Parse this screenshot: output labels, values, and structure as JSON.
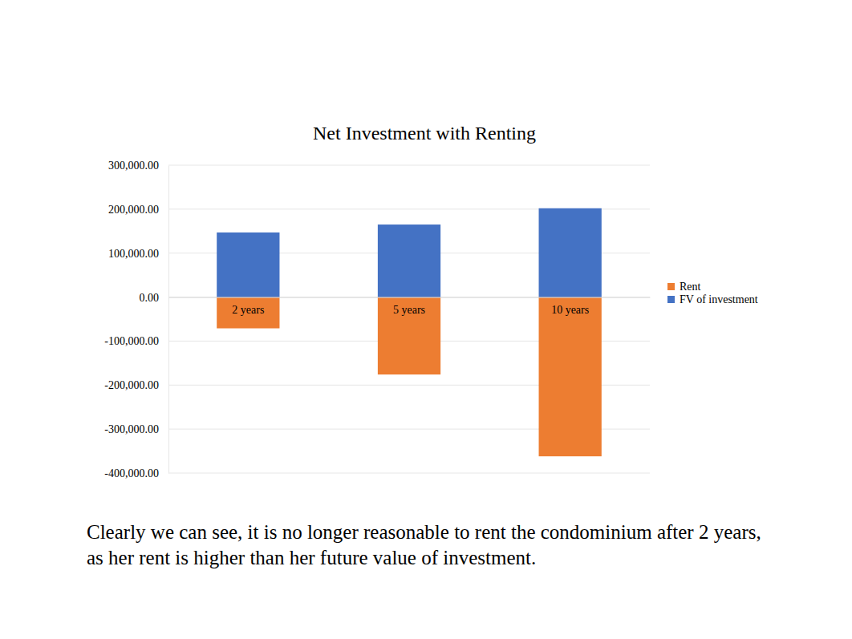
{
  "chart_data": {
    "type": "bar",
    "title": "Net Investment with Renting",
    "categories": [
      "2 years",
      "5 years",
      "10 years"
    ],
    "series": [
      {
        "name": "Rent",
        "color": "#ed7d31",
        "values": [
          -71000,
          -176000,
          -362000
        ]
      },
      {
        "name": "FV of investment",
        "color": "#4472c4",
        "values": [
          147000,
          165000,
          202000
        ]
      }
    ],
    "ylim": [
      -400000,
      300000
    ],
    "yticks": [
      {
        "value": -400000,
        "label": "-400,000.00"
      },
      {
        "value": -300000,
        "label": "-300,000.00"
      },
      {
        "value": -200000,
        "label": "-200,000.00"
      },
      {
        "value": -100000,
        "label": "-100,000.00"
      },
      {
        "value": 0,
        "label": "0.00"
      },
      {
        "value": 100000,
        "label": "100,000.00"
      },
      {
        "value": 200000,
        "label": "200,000.00"
      },
      {
        "value": 300000,
        "label": "300,000.00"
      }
    ],
    "stacked": true,
    "grid": true,
    "legend": "right",
    "caption": "Clearly we can see, it is no longer reasonable to rent the condominium after 2 years, as her rent is higher than her future value of investment."
  }
}
